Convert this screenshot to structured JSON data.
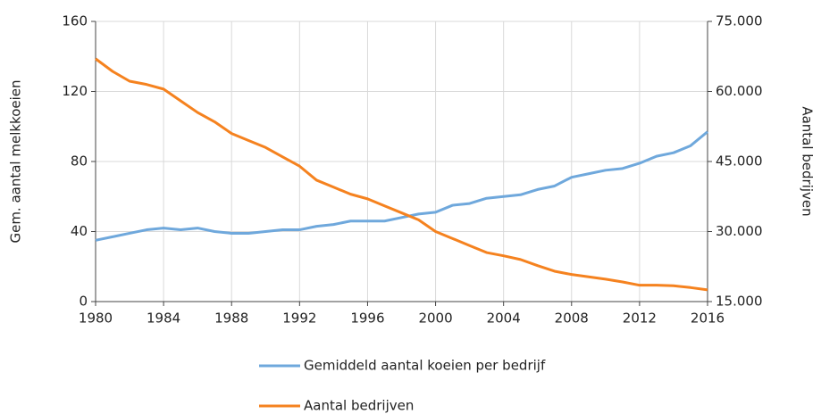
{
  "chart_data": {
    "type": "line",
    "x": [
      1980,
      1981,
      1982,
      1983,
      1984,
      1985,
      1986,
      1987,
      1988,
      1989,
      1990,
      1991,
      1992,
      1993,
      1994,
      1995,
      1996,
      1997,
      1998,
      1999,
      2000,
      2001,
      2002,
      2003,
      2004,
      2005,
      2006,
      2007,
      2008,
      2009,
      2010,
      2011,
      2012,
      2013,
      2014,
      2015,
      2016
    ],
    "xlim": [
      1980,
      2016
    ],
    "xticks": [
      1980,
      1984,
      1988,
      1992,
      1996,
      2000,
      2004,
      2008,
      2012,
      2016
    ],
    "ylim": [
      0,
      160
    ],
    "yticks": [
      0,
      40,
      80,
      120,
      160
    ],
    "y2lim": [
      15000,
      75000
    ],
    "y2ticks": [
      {
        "value": 15000,
        "label": "15.000"
      },
      {
        "value": 30000,
        "label": "30.000"
      },
      {
        "value": 45000,
        "label": "45.000"
      },
      {
        "value": 60000,
        "label": "60.000"
      },
      {
        "value": 75000,
        "label": "75.000"
      }
    ],
    "ylabel": "Gem. aantal melkkoeien",
    "y2label": "Aantal bedrijven",
    "grid": true,
    "legend": "bottom",
    "series": [
      {
        "name": "Gemiddeld aantal koeien per bedrijf",
        "color": "#6fa8dc",
        "values": [
          35,
          37,
          39,
          41,
          42,
          41,
          42,
          40,
          39,
          39,
          40,
          41,
          41,
          43,
          44,
          46,
          46,
          46,
          48,
          50,
          51,
          55,
          56,
          59,
          60,
          61,
          64,
          66,
          71,
          73,
          75,
          76,
          79,
          83,
          85,
          89,
          97
        ]
      },
      {
        "name": "Aantal bedrijven",
        "color": "#f5821f",
        "axis": "y2",
        "values": [
          67000,
          64300,
          62200,
          61500,
          60500,
          58000,
          55500,
          53500,
          51000,
          49500,
          48000,
          46000,
          44000,
          41000,
          39500,
          38000,
          37000,
          35500,
          34000,
          32500,
          30000,
          28500,
          27000,
          25500,
          24800,
          24000,
          22700,
          21500,
          20800,
          20300,
          19800,
          19200,
          18500,
          18500,
          18400,
          18000,
          17500
        ]
      }
    ]
  }
}
